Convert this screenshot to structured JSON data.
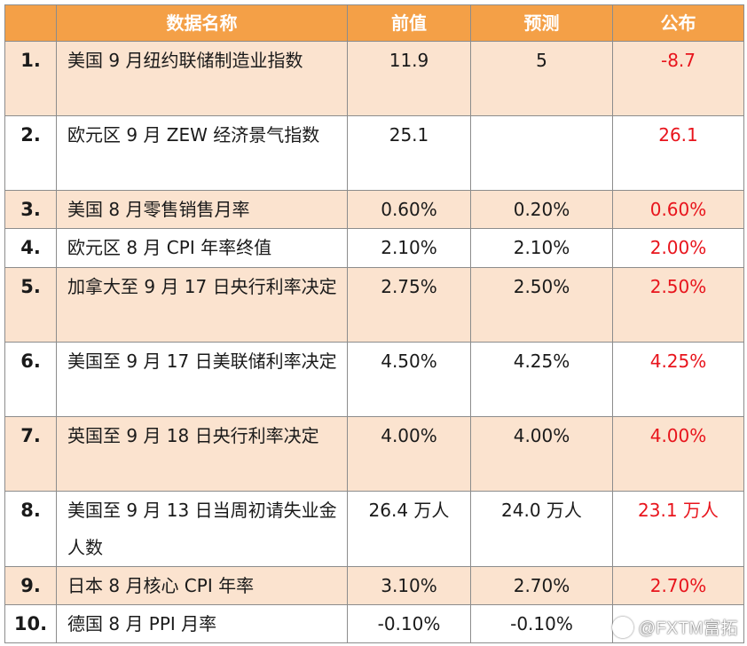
{
  "header": {
    "name": "数据名称",
    "previous": "前值",
    "forecast": "预测",
    "actual": "公布"
  },
  "rows": [
    {
      "no": "1.",
      "name": "美国 9 月纽约联储制造业指数",
      "previous": "11.9",
      "forecast": "5",
      "actual": "-8.7"
    },
    {
      "no": "2.",
      "name": "欧元区 9 月 ZEW 经济景气指数",
      "previous": "25.1",
      "forecast": "",
      "actual": "26.1"
    },
    {
      "no": "3.",
      "name": "美国 8 月零售销售月率",
      "previous": "0.60%",
      "forecast": "0.20%",
      "actual": "0.60%"
    },
    {
      "no": "4.",
      "name": "欧元区 8 月 CPI 年率终值",
      "previous": "2.10%",
      "forecast": "2.10%",
      "actual": "2.00%"
    },
    {
      "no": "5.",
      "name": "加拿大至 9 月 17 日央行利率决定",
      "previous": "2.75%",
      "forecast": "2.50%",
      "actual": "2.50%"
    },
    {
      "no": "6.",
      "name": "美国至 9 月 17 日美联储利率决定",
      "previous": "4.50%",
      "forecast": "4.25%",
      "actual": "4.25%"
    },
    {
      "no": "7.",
      "name": "英国至 9 月 18 日央行利率决定",
      "previous": "4.00%",
      "forecast": "4.00%",
      "actual": "4.00%"
    },
    {
      "no": "8.",
      "name": "美国至 9 月 13 日当周初请失业金人数",
      "previous": "26.4 万人",
      "forecast": "24.0 万人",
      "actual": "23.1 万人"
    },
    {
      "no": "9.",
      "name": "日本 8 月核心 CPI 年率",
      "previous": "3.10%",
      "forecast": "2.70%",
      "actual": "2.70%"
    },
    {
      "no": "10.",
      "name": "德国 8 月 PPI 月率",
      "previous": "-0.10%",
      "forecast": "-0.10%",
      "actual": ""
    }
  ],
  "watermark": "@FXTM富拓",
  "colors": {
    "header_bg": "#f4a047",
    "shaded_row": "#fbe3cf",
    "actual_text": "#e8141c"
  }
}
